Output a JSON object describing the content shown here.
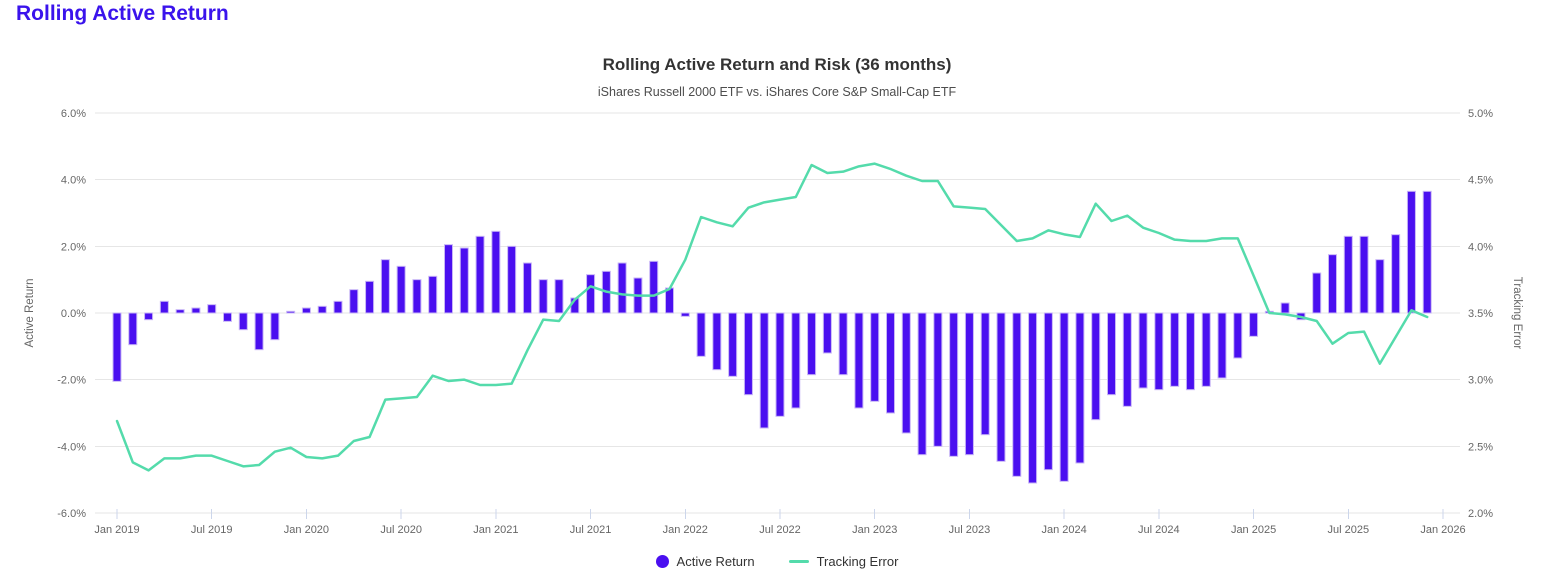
{
  "page": {
    "title": "Rolling Active Return"
  },
  "chart": {
    "title": "Rolling Active Return and Risk (36 months)",
    "subtitle": "iShares Russell 2000 ETF vs. iShares Core S&P Small-Cap ETF",
    "left_axis": {
      "title": "Active Return",
      "ticks": [
        "6.0%",
        "4.0%",
        "2.0%",
        "0.0%",
        "-2.0%",
        "-4.0%",
        "-6.0%"
      ],
      "min": -6,
      "max": 6,
      "unit": "%"
    },
    "right_axis": {
      "title": "Tracking Error",
      "ticks": [
        "5.0%",
        "4.5%",
        "4.0%",
        "3.5%",
        "3.0%",
        "2.5%",
        "2.0%"
      ],
      "min": 2,
      "max": 5,
      "unit": "%"
    },
    "x_axis": {
      "tick_labels": [
        "Jan 2019",
        "Jul 2019",
        "Jan 2020",
        "Jul 2020",
        "Jan 2021",
        "Jul 2021",
        "Jan 2022",
        "Jul 2022",
        "Jan 2023",
        "Jul 2023",
        "Jan 2024",
        "Jul 2024",
        "Jan 2025",
        "Jul 2025",
        "Jan 2026"
      ]
    },
    "legend": [
      {
        "label": "Active Return",
        "marker": "circle",
        "color": "#4a0ff0"
      },
      {
        "label": "Tracking Error",
        "marker": "line",
        "color": "#54dbab"
      }
    ]
  },
  "colors": {
    "page_title": "#3a13ec",
    "bar_fill": "#4a0ff0",
    "bar_stroke": "#c7b5f6",
    "line": "#54dbab",
    "gridline": "#e6e6e6",
    "axis_tick": "#ccd6eb",
    "axis_text": "#666666",
    "title_text": "#333333"
  },
  "chart_data": {
    "type": "bar+line combo, dual y-axes",
    "title": "Rolling Active Return and Risk (36 months)",
    "subtitle": "iShares Russell 2000 ETF vs. iShares Core S&P Small-Cap ETF",
    "xlabel": "",
    "x_tick_labels": [
      "Jan 2019",
      "Jul 2019",
      "Jan 2020",
      "Jul 2020",
      "Jan 2021",
      "Jul 2021",
      "Jan 2022",
      "Jul 2022",
      "Jan 2023",
      "Jul 2023",
      "Jan 2024",
      "Jul 2024",
      "Jan 2025",
      "Jul 2025",
      "Jan 2026"
    ],
    "left_ylabel": "Active Return",
    "left_ylim": [
      -6,
      6
    ],
    "right_ylabel": "Tracking Error",
    "right_ylim": [
      2,
      5
    ],
    "grid": "horizontal",
    "legend_position": "bottom-center",
    "months": [
      "Jan 2019",
      "Feb 2019",
      "Mar 2019",
      "Apr 2019",
      "May 2019",
      "Jun 2019",
      "Jul 2019",
      "Aug 2019",
      "Sep 2019",
      "Oct 2019",
      "Nov 2019",
      "Dec 2019",
      "Jan 2020",
      "Feb 2020",
      "Mar 2020",
      "Apr 2020",
      "May 2020",
      "Jun 2020",
      "Jul 2020",
      "Aug 2020",
      "Sep 2020",
      "Oct 2020",
      "Nov 2020",
      "Dec 2020",
      "Jan 2021",
      "Feb 2021",
      "Mar 2021",
      "Apr 2021",
      "May 2021",
      "Jun 2021",
      "Jul 2021",
      "Aug 2021",
      "Sep 2021",
      "Oct 2021",
      "Nov 2021",
      "Dec 2021",
      "Jan 2022",
      "Feb 2022",
      "Mar 2022",
      "Apr 2022",
      "May 2022",
      "Jun 2022",
      "Jul 2022",
      "Aug 2022",
      "Sep 2022",
      "Oct 2022",
      "Nov 2022",
      "Dec 2022",
      "Jan 2023",
      "Feb 2023",
      "Mar 2023",
      "Apr 2023",
      "May 2023",
      "Jun 2023",
      "Jul 2023",
      "Aug 2023",
      "Sep 2023",
      "Oct 2023",
      "Nov 2023",
      "Dec 2023",
      "Jan 2024",
      "Feb 2024",
      "Mar 2024",
      "Apr 2024",
      "May 2024",
      "Jun 2024",
      "Jul 2024",
      "Aug 2024",
      "Sep 2024",
      "Oct 2024",
      "Nov 2024",
      "Dec 2024",
      "Jan 2025",
      "Feb 2025",
      "Mar 2025",
      "Apr 2025",
      "May 2025",
      "Jun 2025",
      "Jul 2025",
      "Aug 2025",
      "Sep 2025",
      "Oct 2025",
      "Nov 2025",
      "Dec 2025"
    ],
    "series": [
      {
        "name": "Active Return",
        "type": "bar",
        "axis": "left",
        "unit": "%",
        "values": [
          -2.05,
          -0.95,
          -0.2,
          0.35,
          0.1,
          0.15,
          0.25,
          -0.25,
          -0.5,
          -1.1,
          -0.8,
          0.05,
          0.15,
          0.2,
          0.35,
          0.7,
          0.95,
          1.6,
          1.4,
          1.0,
          1.1,
          2.05,
          1.95,
          2.3,
          2.45,
          2.0,
          1.5,
          1.0,
          1.0,
          0.45,
          1.15,
          1.25,
          1.5,
          1.05,
          1.55,
          0.75,
          -0.1,
          -1.3,
          -1.7,
          -1.9,
          -2.45,
          -3.45,
          -3.1,
          -2.85,
          -1.85,
          -1.2,
          -1.85,
          -2.85,
          -2.65,
          -3.0,
          -3.6,
          -4.25,
          -4.0,
          -4.3,
          -4.25,
          -3.65,
          -4.45,
          -4.9,
          -5.1,
          -4.7,
          -5.05,
          -4.5,
          -3.2,
          -2.45,
          -2.8,
          -2.25,
          -2.3,
          -2.2,
          -2.3,
          -2.2,
          -1.95,
          -1.35,
          -0.7,
          0.05,
          0.3,
          -0.2,
          1.2,
          1.75,
          2.3,
          2.3,
          1.6,
          2.35,
          3.65,
          3.65
        ]
      },
      {
        "name": "Tracking Error",
        "type": "line",
        "axis": "right",
        "unit": "%",
        "values": [
          2.69,
          2.38,
          2.32,
          2.41,
          2.41,
          2.43,
          2.43,
          2.39,
          2.35,
          2.36,
          2.46,
          2.49,
          2.42,
          2.41,
          2.43,
          2.54,
          2.57,
          2.85,
          2.86,
          2.87,
          3.03,
          2.99,
          3.0,
          2.96,
          2.96,
          2.97,
          3.22,
          3.45,
          3.44,
          3.6,
          3.7,
          3.66,
          3.64,
          3.63,
          3.63,
          3.68,
          3.9,
          4.22,
          4.18,
          4.15,
          4.29,
          4.33,
          4.35,
          4.37,
          4.61,
          4.55,
          4.56,
          4.6,
          4.62,
          4.58,
          4.53,
          4.49,
          4.49,
          4.3,
          4.29,
          4.28,
          4.16,
          4.04,
          4.06,
          4.12,
          4.09,
          4.07,
          4.32,
          4.19,
          4.23,
          4.14,
          4.1,
          4.05,
          4.04,
          4.04,
          4.06,
          4.06,
          3.78,
          3.5,
          3.49,
          3.47,
          3.44,
          3.27,
          3.35,
          3.36,
          3.12,
          3.32,
          3.52,
          3.47
        ]
      }
    ]
  }
}
